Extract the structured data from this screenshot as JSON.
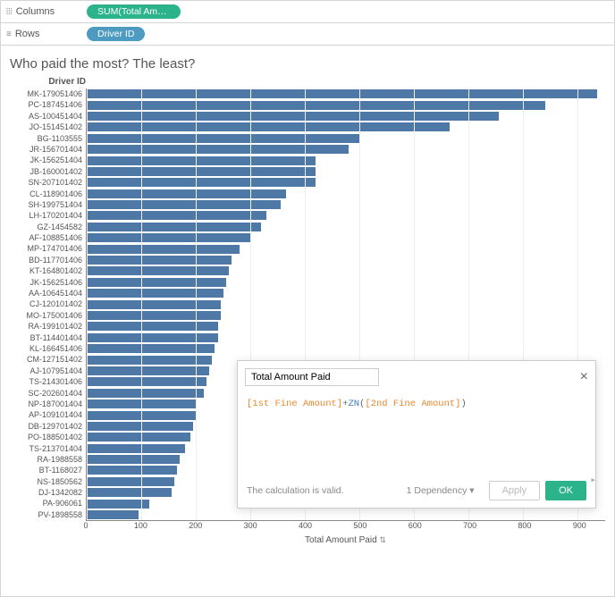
{
  "shelves": {
    "columns_label": "Columns",
    "rows_label": "Rows",
    "columns_pill": "SUM(Total Amount P...",
    "rows_pill": "Driver ID"
  },
  "chart": {
    "title": "Who paid the most? The least?",
    "y_axis_title": "Driver ID",
    "x_axis_title": "Total Amount Paid",
    "type": "bar",
    "bar_color": "#4e79a7",
    "grid_color": "#eeeeee",
    "axis_color": "#888888",
    "background_color": "#ffffff",
    "x_ticks": [
      0,
      100,
      200,
      300,
      400,
      500,
      600,
      700,
      800,
      900
    ],
    "x_max": 950,
    "rows": [
      {
        "label": "MK-179051406",
        "value": 935
      },
      {
        "label": "PC-187451406",
        "value": 840
      },
      {
        "label": "AS-100451404",
        "value": 755
      },
      {
        "label": "JO-151451402",
        "value": 665
      },
      {
        "label": "BG-1103555",
        "value": 500
      },
      {
        "label": "JR-156701404",
        "value": 480
      },
      {
        "label": "JK-156251404",
        "value": 420
      },
      {
        "label": "JB-160001402",
        "value": 420
      },
      {
        "label": "SN-207101402",
        "value": 420
      },
      {
        "label": "CL-118901406",
        "value": 365
      },
      {
        "label": "SH-199751404",
        "value": 355
      },
      {
        "label": "LH-170201404",
        "value": 330
      },
      {
        "label": "GZ-1454582",
        "value": 320
      },
      {
        "label": "AF-108851406",
        "value": 300
      },
      {
        "label": "MP-174701406",
        "value": 280
      },
      {
        "label": "BD-117701406",
        "value": 265
      },
      {
        "label": "KT-164801402",
        "value": 260
      },
      {
        "label": "JK-156251406",
        "value": 255
      },
      {
        "label": "AA-106451404",
        "value": 250
      },
      {
        "label": "CJ-120101402",
        "value": 245
      },
      {
        "label": "MO-175001406",
        "value": 245
      },
      {
        "label": "RA-199101402",
        "value": 240
      },
      {
        "label": "BT-114401404",
        "value": 240
      },
      {
        "label": "KL-166451406",
        "value": 235
      },
      {
        "label": "CM-127151402",
        "value": 230
      },
      {
        "label": "AJ-107951404",
        "value": 225
      },
      {
        "label": "TS-214301406",
        "value": 220
      },
      {
        "label": "SC-202601404",
        "value": 215
      },
      {
        "label": "NP-187001404",
        "value": 200
      },
      {
        "label": "AP-109101404",
        "value": 200
      },
      {
        "label": "DB-129701402",
        "value": 195
      },
      {
        "label": "PO-188501402",
        "value": 190
      },
      {
        "label": "TS-213701404",
        "value": 180
      },
      {
        "label": "RA-1988558",
        "value": 170
      },
      {
        "label": "BT-1168027",
        "value": 165
      },
      {
        "label": "NS-1850562",
        "value": 160
      },
      {
        "label": "DJ-1342082",
        "value": 155
      },
      {
        "label": "PA-906061",
        "value": 115
      },
      {
        "label": "PV-1898558",
        "value": 95
      }
    ]
  },
  "calc_dialog": {
    "name": "Total Amount Paid",
    "field1": "[1st Fine Amount]",
    "op": "+",
    "fn": "ZN",
    "paren_open": "(",
    "field2": "[2nd Fine Amount]",
    "paren_close": ")",
    "status": "The calculation is valid.",
    "dependency_text": "1 Dependency",
    "apply_label": "Apply",
    "ok_label": "OK"
  }
}
